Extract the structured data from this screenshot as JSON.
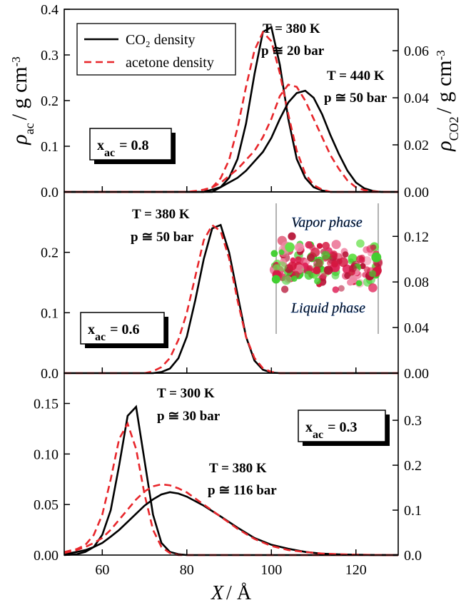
{
  "chart_data": [
    {
      "type": "line",
      "ylabel": {
        "symbol": "ρ",
        "sub": "ac",
        "text": "/ g cm",
        "sup": "-3"
      },
      "y2label": {
        "symbol": "ρ",
        "sub": "CO2",
        "text": "/ g cm",
        "sup": "-3"
      },
      "xlim": [
        51,
        130
      ],
      "xticks": [
        60,
        80,
        100,
        120
      ],
      "ylim": [
        0,
        0.4
      ],
      "yticks": [
        {
          "value": 0,
          "label": "0.0"
        },
        0.1,
        0.2,
        0.3,
        0.4
      ],
      "y2lim": [
        0,
        0.0776
      ],
      "y2ticks": [
        {
          "value": 0,
          "label": "0.00"
        },
        0.02,
        0.04,
        0.06
      ],
      "legend": "upper left",
      "x": [
        51,
        80,
        82,
        84,
        86,
        88,
        90,
        92,
        94,
        96,
        98,
        100,
        102,
        104,
        106,
        108,
        110,
        112,
        114,
        116,
        118,
        120,
        122,
        124,
        126,
        128,
        130
      ],
      "series": [
        {
          "name": "CO₂ density",
          "color": "#000000",
          "dashed": false,
          "axis": "y2",
          "values": [
            0,
            0,
            0,
            0,
            0,
            0.002,
            0.006,
            0.014,
            0.029,
            0.05,
            0.068,
            0.07,
            0.054,
            0.031,
            0.014,
            0.006,
            0.002,
            0.0006,
            0,
            0,
            0,
            0,
            0,
            0,
            0,
            0,
            0
          ]
        },
        {
          "name": "acetone density",
          "color": "#e8262b",
          "dashed": true,
          "values": [
            0,
            0,
            0,
            0,
            0.01,
            0.03,
            0.07,
            0.14,
            0.23,
            0.31,
            0.35,
            0.33,
            0.26,
            0.17,
            0.09,
            0.04,
            0.015,
            0.005,
            0,
            0,
            0,
            0,
            0,
            0,
            0,
            0,
            0
          ]
        },
        {
          "color": "#000000",
          "dashed": false,
          "axis": "y2",
          "values": [
            0,
            0,
            0,
            0,
            0.001,
            0.002,
            0.004,
            0.006,
            0.009,
            0.013,
            0.017,
            0.023,
            0.031,
            0.038,
            0.042,
            0.043,
            0.04,
            0.033,
            0.024,
            0.016,
            0.009,
            0.004,
            0.0015,
            0.0004,
            0,
            0,
            0
          ]
        },
        {
          "color": "#e8262b",
          "dashed": true,
          "values": [
            0,
            0,
            0.002,
            0.005,
            0.01,
            0.02,
            0.035,
            0.05,
            0.07,
            0.09,
            0.12,
            0.16,
            0.21,
            0.235,
            0.23,
            0.2,
            0.16,
            0.12,
            0.08,
            0.05,
            0.025,
            0.01,
            0.004,
            0.001,
            0,
            0,
            0
          ]
        }
      ],
      "annotations": [
        "T = 380 K",
        "p ≅ 20 bar",
        "T = 440 K",
        "p ≅ 50 bar"
      ],
      "box_label": {
        "var": "x",
        "sub": "ac",
        "text": "= 0.8"
      }
    },
    {
      "type": "line",
      "xlim": [
        51,
        130
      ],
      "xticks": [
        60,
        80,
        100,
        120
      ],
      "ylim": [
        0,
        0.3
      ],
      "yticks": [
        {
          "value": 0,
          "label": "0.0"
        },
        0.1,
        0.2
      ],
      "y2lim": [
        0,
        0.159
      ],
      "y2ticks": [
        {
          "value": 0,
          "label": "0.00"
        },
        0.04,
        0.08,
        0.12
      ],
      "x": [
        51,
        70,
        72,
        74,
        76,
        78,
        80,
        82,
        84,
        86,
        88,
        90,
        92,
        94,
        96,
        98,
        100,
        102,
        104,
        130
      ],
      "series": [
        {
          "color": "#000000",
          "dashed": false,
          "axis": "y2",
          "values": [
            0,
            0,
            0,
            0.001,
            0.004,
            0.013,
            0.032,
            0.064,
            0.1,
            0.127,
            0.13,
            0.106,
            0.069,
            0.032,
            0.011,
            0.003,
            0.0005,
            0,
            0,
            0
          ]
        },
        {
          "color": "#e8262b",
          "dashed": true,
          "values": [
            0,
            0,
            0.003,
            0.01,
            0.025,
            0.055,
            0.1,
            0.16,
            0.22,
            0.245,
            0.235,
            0.19,
            0.12,
            0.06,
            0.025,
            0.008,
            0.002,
            0,
            0,
            0
          ]
        }
      ],
      "annotations": [
        "T = 380 K",
        "p ≅ 50 bar"
      ],
      "box_label": {
        "var": "x",
        "sub": "ac",
        "text": "= 0.6"
      },
      "inset": {
        "top_text": "Vapor phase",
        "bottom_text": "Liquid phase"
      }
    },
    {
      "type": "line",
      "xlabel": {
        "symbol": "X",
        "text": "/ Å"
      },
      "xlim": [
        51,
        130
      ],
      "xticks": [
        60,
        80,
        100,
        120
      ],
      "ylim": [
        0,
        0.18
      ],
      "yticks": [
        {
          "value": 0,
          "label": "0.00"
        },
        0.05,
        {
          "value": 0.1,
          "label": "0.10"
        },
        0.15
      ],
      "y2lim": [
        0,
        0.405
      ],
      "y2ticks": [
        {
          "value": 0,
          "label": "0.0"
        },
        0.1,
        0.2,
        0.3
      ],
      "x": [
        51,
        54,
        56,
        58,
        60,
        62,
        64,
        66,
        68,
        70,
        72,
        74,
        76,
        78,
        80,
        84,
        88,
        92,
        96,
        100,
        104,
        108,
        112,
        116,
        120,
        124,
        128,
        130
      ],
      "series": [
        {
          "color": "#000000",
          "dashed": false,
          "axis": "y2",
          "values": [
            0,
            0.002,
            0.007,
            0.018,
            0.045,
            0.1,
            0.2,
            0.31,
            0.33,
            0.21,
            0.09,
            0.027,
            0.007,
            0.002,
            0,
            0,
            0,
            0,
            0,
            0,
            0,
            0,
            0,
            0,
            0,
            0,
            0,
            0
          ]
        },
        {
          "color": "#e8262b",
          "dashed": true,
          "values": [
            0.003,
            0.006,
            0.01,
            0.02,
            0.04,
            0.075,
            0.115,
            0.13,
            0.105,
            0.06,
            0.025,
            0.008,
            0.002,
            0,
            0,
            0,
            0,
            0,
            0,
            0,
            0,
            0,
            0,
            0,
            0,
            0,
            0,
            0
          ]
        },
        {
          "color": "#000000",
          "dashed": false,
          "axis": "y2",
          "values": [
            0.002,
            0.007,
            0.011,
            0.018,
            0.027,
            0.041,
            0.056,
            0.074,
            0.092,
            0.11,
            0.124,
            0.135,
            0.14,
            0.137,
            0.13,
            0.11,
            0.086,
            0.061,
            0.038,
            0.023,
            0.014,
            0.007,
            0.003,
            0.0016,
            0.0007,
            0.0002,
            0,
            0
          ]
        },
        {
          "color": "#e8262b",
          "dashed": true,
          "values": [
            0.002,
            0.005,
            0.008,
            0.012,
            0.017,
            0.025,
            0.035,
            0.045,
            0.055,
            0.063,
            0.068,
            0.07,
            0.069,
            0.066,
            0.062,
            0.05,
            0.038,
            0.026,
            0.016,
            0.009,
            0.005,
            0.003,
            0.0015,
            0.0008,
            0.0004,
            0.0002,
            0,
            0
          ]
        }
      ],
      "annotations": [
        "T = 300 K",
        "p ≅ 30 bar",
        "T = 380 K",
        "p ≅ 116 bar"
      ],
      "box_label": {
        "var": "x",
        "sub": "ac",
        "text": "= 0.3"
      }
    }
  ]
}
